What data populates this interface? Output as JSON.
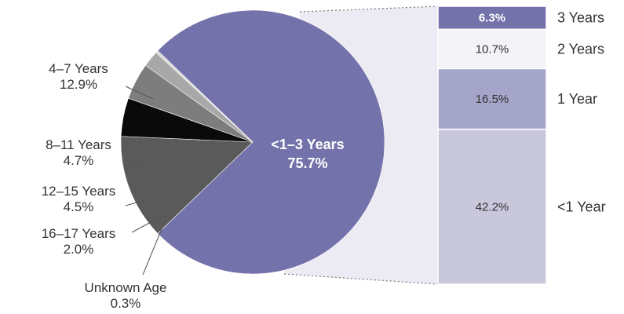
{
  "chart_data": [
    {
      "type": "pie",
      "slices": [
        {
          "name": "<1–3 Years",
          "value": 75.7,
          "label": "75.7%",
          "color": "#7472aa"
        },
        {
          "name": "4–7 Years",
          "value": 12.9,
          "label": "12.9%",
          "color": "#5a5a5a"
        },
        {
          "name": "8–11 Years",
          "value": 4.7,
          "label": "4.7%",
          "color": "#0a0a0a"
        },
        {
          "name": "12–15 Years",
          "value": 4.5,
          "label": "4.5%",
          "color": "#7d7d7d"
        },
        {
          "name": "16–17 Years",
          "value": 2.0,
          "label": "2.0%",
          "color": "#a8a8a8"
        },
        {
          "name": "Unknown Age",
          "value": 0.3,
          "label": "0.3%",
          "color": "#d8d8d8"
        }
      ]
    },
    {
      "type": "bar",
      "stacked": true,
      "categories": [
        "3 Years",
        "2 Years",
        "1 Year",
        "<1 Year"
      ],
      "values": [
        6.3,
        10.7,
        16.5,
        42.2
      ],
      "labels": [
        "6.3%",
        "10.7%",
        "16.5%",
        "42.2%"
      ],
      "colors": [
        "#7472aa",
        "#f3f3f8",
        "#a5a4c9",
        "#c8c7dc"
      ]
    }
  ]
}
